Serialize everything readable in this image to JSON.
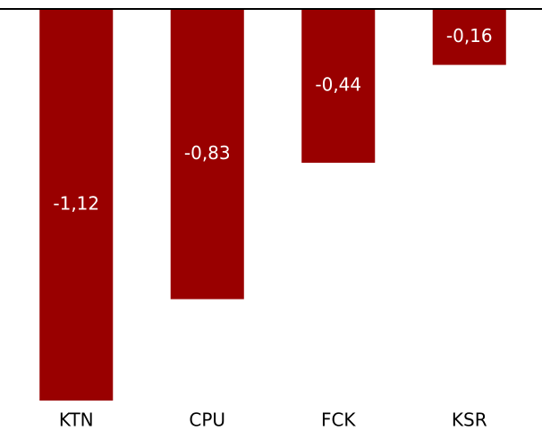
{
  "chart_data": {
    "type": "bar",
    "categories": [
      "KTN",
      "CPU",
      "FCK",
      "KSR"
    ],
    "values": [
      -1.12,
      -0.83,
      -0.44,
      -0.16
    ],
    "value_labels": [
      "-1,12",
      "-0,83",
      "-0,44",
      "-0,16"
    ],
    "color": "#990000",
    "ylim": [
      -1.12,
      0
    ]
  }
}
